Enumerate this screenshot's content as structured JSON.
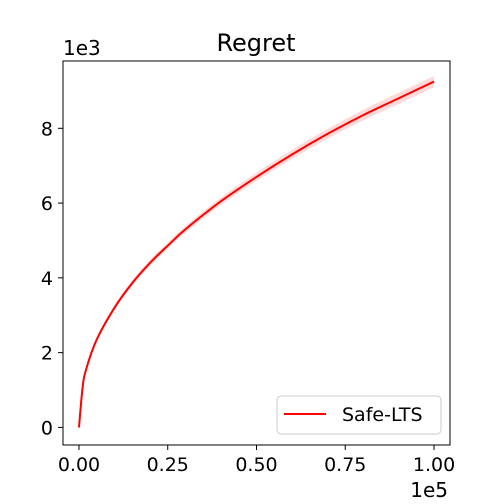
{
  "chart_data": {
    "type": "line",
    "title": "Regret",
    "xlabel": "",
    "ylabel": "",
    "x_multiplier_label": "1e5",
    "y_multiplier_label": "1e3",
    "xlim": [
      -0.045,
      1.045
    ],
    "ylim": [
      -0.47,
      9.8
    ],
    "xticks": [
      0.0,
      0.25,
      0.5,
      0.75,
      1.0
    ],
    "xtick_labels": [
      "0.00",
      "0.25",
      "0.50",
      "0.75",
      "1.00"
    ],
    "yticks": [
      0,
      2,
      4,
      6,
      8
    ],
    "ytick_labels": [
      "0",
      "2",
      "4",
      "6",
      "8"
    ],
    "grid": false,
    "legend": {
      "placement": "lower-right",
      "entries": [
        {
          "name": "Safe-LTS",
          "color": "#ff0000"
        }
      ]
    },
    "series": [
      {
        "name": "Safe-LTS",
        "color": "#ff0000",
        "band_color": "#ffcccc",
        "x": [
          0.0,
          0.01,
          0.02,
          0.05,
          0.1,
          0.15,
          0.2,
          0.25,
          0.3,
          0.4,
          0.5,
          0.6,
          0.7,
          0.8,
          0.9,
          1.0
        ],
        "y": [
          0.0,
          1.05,
          1.55,
          2.35,
          3.2,
          3.86,
          4.4,
          4.86,
          5.3,
          6.05,
          6.7,
          7.3,
          7.85,
          8.35,
          8.8,
          9.25
        ],
        "y_lower": [
          0.0,
          1.02,
          1.51,
          2.3,
          3.14,
          3.79,
          4.32,
          4.78,
          5.21,
          5.95,
          6.59,
          7.18,
          7.72,
          8.21,
          8.65,
          9.1
        ],
        "y_upper": [
          0.0,
          1.08,
          1.59,
          2.4,
          3.26,
          3.93,
          4.48,
          4.94,
          5.39,
          6.15,
          6.81,
          7.42,
          7.98,
          8.49,
          8.95,
          9.4
        ]
      }
    ]
  }
}
